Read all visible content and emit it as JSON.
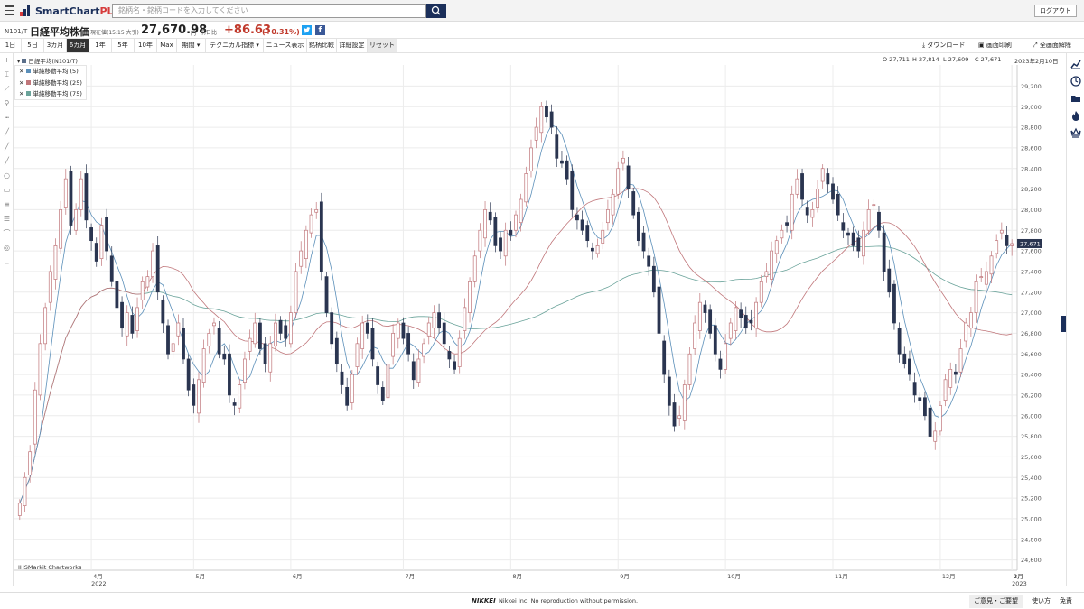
{
  "app": {
    "logo_text": "SmartChart",
    "logo_bold": "PLUS"
  },
  "search": {
    "placeholder": "銘柄名・銘柄コードを入力してください"
  },
  "header": {
    "logout": "ログアウト",
    "code": "N101/T",
    "name": "日経平均株価",
    "price_label": "現在値(15:15 大引)",
    "price": "27,670.98",
    "unit": "円",
    "change_label": "前日比",
    "change": "+86.63",
    "change_pct": "(+0.31%)"
  },
  "toolbar": {
    "periods": [
      "1日",
      "5日",
      "3カ月",
      "6カ月",
      "1年",
      "5年",
      "10年",
      "Max"
    ],
    "active_period": "6カ月",
    "kikan": "期間",
    "technical": "テクニカル指標",
    "news": "ニュース表示",
    "compare": "銘柄比較",
    "settings": "詳細設定",
    "reset": "リセット",
    "download": "ダウンロード",
    "print": "画面印刷",
    "fullscreen": "全画面解除"
  },
  "infobar": {
    "series": "日経平均(N101/T)",
    "open": "O 27,711",
    "high": "H 27,814",
    "low": "L 27,609",
    "close": "C 27,671",
    "date": "2023年2月10日"
  },
  "legend": [
    {
      "label": "単純移動平均 (5)",
      "color": "#5b8fb9"
    },
    {
      "label": "単純移動平均 (25)",
      "color": "#c0767a"
    },
    {
      "label": "単純移動平均 (75)",
      "color": "#6aa39a"
    }
  ],
  "credit": "IHSMarkit Chartworks",
  "footer": {
    "logo": "NIKKEI",
    "notice": "Nikkei Inc. No reproduction without permission.",
    "feedback": "ご意見・ご要望",
    "howto": "使い方",
    "disclaimer": "免責"
  },
  "chart_data": {
    "type": "candlestick",
    "ylim": [
      24500,
      29300
    ],
    "yticks": [
      24600,
      24800,
      25000,
      25200,
      25400,
      25600,
      25800,
      26000,
      26200,
      26400,
      26600,
      26800,
      27000,
      27200,
      27400,
      27600,
      27800,
      28000,
      28200,
      28400,
      28600,
      28800,
      29000,
      29200
    ],
    "xticks": [
      {
        "label": "4月",
        "sub": "2022"
      },
      {
        "label": "5月",
        "sub": ""
      },
      {
        "label": "6月",
        "sub": ""
      },
      {
        "label": "7月",
        "sub": ""
      },
      {
        "label": "8月",
        "sub": ""
      },
      {
        "label": "9月",
        "sub": ""
      },
      {
        "label": "10月",
        "sub": ""
      },
      {
        "label": "11月",
        "sub": ""
      },
      {
        "label": "12月",
        "sub": ""
      },
      {
        "label": "1月",
        "sub": "2023"
      },
      {
        "label": "2月",
        "sub": ""
      }
    ],
    "last_price_label": "27,671",
    "closes": [
      25150,
      25400,
      25650,
      26250,
      26700,
      27050,
      27400,
      27650,
      28000,
      28300,
      27850,
      28000,
      28300,
      27900,
      27700,
      27500,
      27850,
      27600,
      27300,
      27050,
      26850,
      27000,
      26800,
      27050,
      27300,
      27350,
      27600,
      27200,
      26900,
      26600,
      26700,
      26900,
      26550,
      26250,
      26100,
      26350,
      26650,
      26800,
      26900,
      26600,
      26550,
      26200,
      26100,
      26300,
      26550,
      26750,
      26900,
      26650,
      26500,
      26700,
      26900,
      26800,
      26750,
      27000,
      27400,
      27600,
      27800,
      27950,
      28000,
      27400,
      27000,
      26700,
      26500,
      26300,
      26100,
      26400,
      26700,
      26900,
      26800,
      26550,
      26300,
      26150,
      26500,
      26800,
      26900,
      26750,
      26600,
      26350,
      26550,
      26700,
      26900,
      27000,
      26850,
      26700,
      26550,
      26450,
      26750,
      27050,
      27300,
      27550,
      27800,
      28000,
      27900,
      27650,
      27600,
      27800,
      27750,
      27950,
      28100,
      28350,
      28600,
      28800,
      29000,
      28900,
      28800,
      28500,
      28450,
      28300,
      28000,
      27900,
      27800,
      27700,
      27600,
      27650,
      27800,
      28000,
      28150,
      28400,
      28500,
      28200,
      27950,
      27700,
      27600,
      27450,
      27200,
      26800,
      26400,
      26100,
      25900,
      26000,
      26300,
      26600,
      26900,
      27100,
      27000,
      26800,
      26600,
      26450,
      26700,
      26900,
      27050,
      26950,
      26850,
      26900,
      27100,
      27300,
      27400,
      27600,
      27700,
      27800,
      27850,
      28150,
      28300,
      28100,
      27950,
      28000,
      28200,
      28400,
      28250,
      28100,
      27950,
      27800,
      27750,
      27650,
      27600,
      27800,
      28000,
      28050,
      27800,
      27400,
      27200,
      26900,
      26600,
      26500,
      26400,
      26200,
      26150,
      26000,
      25800,
      25850,
      26100,
      26350,
      26450,
      26400,
      26650,
      26900,
      27000,
      27300,
      27350,
      27400,
      27550,
      27700,
      27800,
      27650,
      27671
    ]
  }
}
